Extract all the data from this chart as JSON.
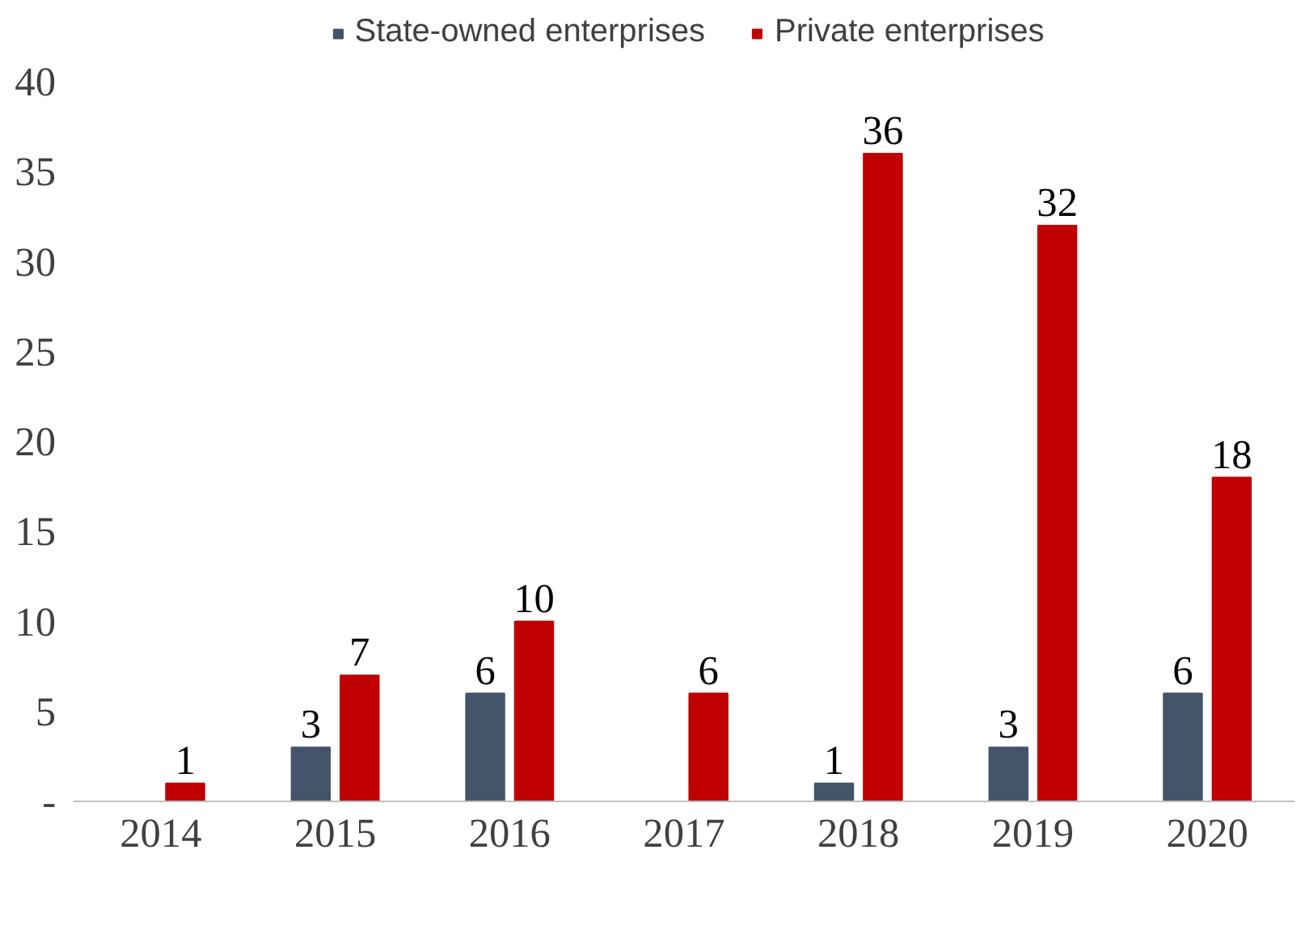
{
  "chart_data": {
    "type": "bar",
    "categories": [
      "2014",
      "2015",
      "2016",
      "2017",
      "2018",
      "2019",
      "2020"
    ],
    "series": [
      {
        "name": "State-owned enterprises",
        "color": "#44546a",
        "values": [
          null,
          3,
          6,
          null,
          1,
          3,
          6
        ]
      },
      {
        "name": "Private enterprises",
        "color": "#c00000",
        "values": [
          1,
          7,
          10,
          6,
          36,
          32,
          18
        ]
      }
    ],
    "ylim": [
      0,
      40
    ],
    "yticks": [
      {
        "value": 0,
        "label": "-"
      },
      5,
      10,
      15,
      20,
      25,
      30,
      35,
      40
    ],
    "data_labels": true,
    "grid": false,
    "legend": "top"
  }
}
